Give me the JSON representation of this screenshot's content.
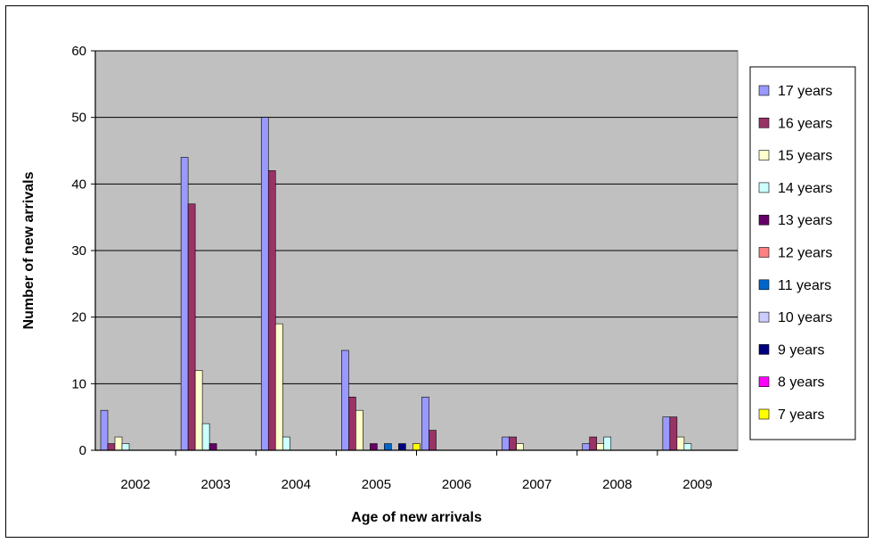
{
  "chart_data": {
    "type": "bar",
    "title": "",
    "xlabel": "Age of new arrivals",
    "ylabel": "Number of new arrivals",
    "ylim": [
      0,
      60
    ],
    "yticks": [
      0,
      10,
      20,
      30,
      40,
      50,
      60
    ],
    "grid": true,
    "legend_position": "right",
    "categories": [
      "2002",
      "2003",
      "2004",
      "2005",
      "2006",
      "2007",
      "2008",
      "2009"
    ],
    "series": [
      {
        "name": "17 years",
        "color": "#9999ff",
        "values": [
          6,
          44,
          50,
          15,
          8,
          2,
          1,
          5
        ]
      },
      {
        "name": "16 years",
        "color": "#993366",
        "values": [
          1,
          37,
          42,
          8,
          3,
          2,
          2,
          5
        ]
      },
      {
        "name": "15 years",
        "color": "#ffffcc",
        "values": [
          2,
          12,
          19,
          6,
          0,
          1,
          1,
          2
        ]
      },
      {
        "name": "14 years",
        "color": "#ccffff",
        "values": [
          1,
          4,
          2,
          0,
          0,
          0,
          2,
          1
        ]
      },
      {
        "name": "13 years",
        "color": "#660066",
        "values": [
          0,
          1,
          0,
          1,
          0,
          0,
          0,
          0
        ]
      },
      {
        "name": "12 years",
        "color": "#ff8080",
        "values": [
          0,
          0,
          0,
          0,
          0,
          0,
          0,
          0
        ]
      },
      {
        "name": "11 years",
        "color": "#0066cc",
        "values": [
          0,
          0,
          0,
          1,
          0,
          0,
          0,
          0
        ]
      },
      {
        "name": "10 years",
        "color": "#ccccff",
        "values": [
          0,
          0,
          0,
          0,
          0,
          0,
          0,
          0
        ]
      },
      {
        "name": "9 years",
        "color": "#000080",
        "values": [
          0,
          0,
          0,
          1,
          0,
          0,
          0,
          0
        ]
      },
      {
        "name": "8 years",
        "color": "#ff00ff",
        "values": [
          0,
          0,
          0,
          0,
          0,
          0,
          0,
          0
        ]
      },
      {
        "name": "7 years",
        "color": "#ffff00",
        "values": [
          0,
          0,
          0,
          1,
          0,
          0,
          0,
          0
        ]
      }
    ],
    "plot_background": "#c0c0c0"
  }
}
